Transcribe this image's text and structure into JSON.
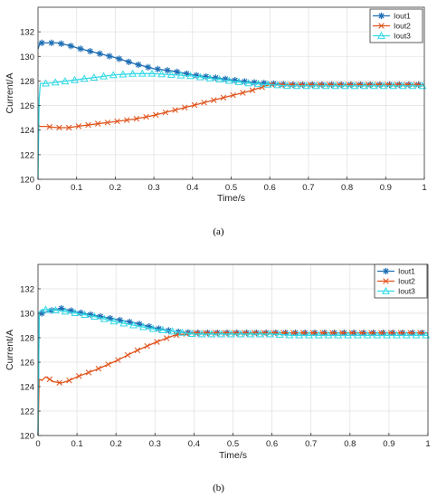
{
  "figure": {
    "caption_a": "(a)",
    "caption_b": "(b)"
  },
  "chart_data": [
    {
      "type": "line",
      "panel": "(a)",
      "xlabel": "Time/s",
      "ylabel": "Current/A",
      "xlim": [
        0,
        1
      ],
      "ylim": [
        120,
        134
      ],
      "xticks": [
        0,
        0.1,
        0.2,
        0.3,
        0.4,
        0.5,
        0.6,
        0.7,
        0.8,
        0.9,
        1
      ],
      "xtick_labels": [
        "0",
        "0.1",
        "0.2",
        "0.3",
        "0.4",
        "0.5",
        "0.6",
        "0.7",
        "0.8",
        "0.9",
        "1"
      ],
      "yticks": [
        120,
        122,
        124,
        126,
        128,
        130,
        132
      ],
      "ytick_labels": [
        "120",
        "122",
        "124",
        "126",
        "128",
        "130",
        "132"
      ],
      "grid": true,
      "legend_position": "top-right",
      "series": [
        {
          "name": "Iout1",
          "color": "#1f6fb5",
          "marker": "asterisk",
          "x": [
            0,
            0.005,
            0.02,
            0.05,
            0.08,
            0.1,
            0.15,
            0.2,
            0.25,
            0.3,
            0.35,
            0.4,
            0.45,
            0.5,
            0.55,
            0.6,
            0.65,
            0.7,
            0.75,
            0.8,
            0.85,
            0.9,
            0.95,
            1
          ],
          "y": [
            130.6,
            131.1,
            131.1,
            131.1,
            130.9,
            130.7,
            130.3,
            129.9,
            129.4,
            129.0,
            128.8,
            128.5,
            128.3,
            128.1,
            127.9,
            127.8,
            127.7,
            127.7,
            127.7,
            127.7,
            127.7,
            127.7,
            127.7,
            127.7
          ]
        },
        {
          "name": "Iout2",
          "color": "#e0531c",
          "marker": "x",
          "x": [
            0,
            0.005,
            0.02,
            0.05,
            0.08,
            0.1,
            0.15,
            0.2,
            0.25,
            0.3,
            0.35,
            0.4,
            0.45,
            0.5,
            0.55,
            0.58,
            0.6,
            0.65,
            0.7,
            0.75,
            0.8,
            0.85,
            0.9,
            0.95,
            1
          ],
          "y": [
            124.5,
            124.3,
            124.3,
            124.2,
            124.2,
            124.3,
            124.5,
            124.7,
            124.9,
            125.2,
            125.6,
            126.0,
            126.4,
            126.8,
            127.2,
            127.5,
            127.7,
            127.7,
            127.7,
            127.7,
            127.7,
            127.7,
            127.7,
            127.7,
            127.7
          ]
        },
        {
          "name": "Iout3",
          "color": "#33d9e6",
          "marker": "triangle",
          "x": [
            0,
            0.003,
            0.006,
            0.02,
            0.05,
            0.1,
            0.15,
            0.2,
            0.25,
            0.3,
            0.35,
            0.4,
            0.45,
            0.5,
            0.55,
            0.6,
            0.65,
            0.7,
            0.75,
            0.8,
            0.85,
            0.9,
            0.95,
            1
          ],
          "y": [
            120,
            126.5,
            127.8,
            127.8,
            127.9,
            128.1,
            128.3,
            128.5,
            128.6,
            128.6,
            128.5,
            128.4,
            128.2,
            128.0,
            127.8,
            127.7,
            127.6,
            127.6,
            127.6,
            127.6,
            127.6,
            127.6,
            127.6,
            127.6
          ]
        }
      ]
    },
    {
      "type": "line",
      "panel": "(b)",
      "xlabel": "Time/s",
      "ylabel": "Current/A",
      "xlim": [
        0,
        1
      ],
      "ylim": [
        120,
        134
      ],
      "xticks": [
        0,
        0.1,
        0.2,
        0.3,
        0.4,
        0.5,
        0.6,
        0.7,
        0.8,
        0.9,
        1
      ],
      "xtick_labels": [
        "0",
        "0.1",
        "0.2",
        "0.3",
        "0.4",
        "0.5",
        "0.6",
        "0.7",
        "0.8",
        "0.9",
        "1"
      ],
      "yticks": [
        120,
        122,
        124,
        126,
        128,
        130,
        132
      ],
      "ytick_labels": [
        "120",
        "122",
        "124",
        "126",
        "128",
        "130",
        "132"
      ],
      "grid": true,
      "legend_position": "top-right",
      "series": [
        {
          "name": "Iout1",
          "color": "#1f6fb5",
          "marker": "asterisk",
          "x": [
            0,
            0.003,
            0.01,
            0.03,
            0.06,
            0.1,
            0.15,
            0.2,
            0.25,
            0.3,
            0.35,
            0.4,
            0.45,
            0.5,
            0.55,
            0.6,
            0.65,
            0.7,
            0.75,
            0.8,
            0.85,
            0.9,
            0.95,
            1
          ],
          "y": [
            120,
            129.8,
            130.0,
            130.2,
            130.4,
            130.1,
            129.8,
            129.5,
            129.2,
            128.8,
            128.5,
            128.4,
            128.4,
            128.4,
            128.4,
            128.4,
            128.4,
            128.4,
            128.4,
            128.4,
            128.4,
            128.4,
            128.4,
            128.4
          ]
        },
        {
          "name": "Iout2",
          "color": "#e0531c",
          "marker": "x",
          "x": [
            0,
            0.003,
            0.01,
            0.02,
            0.04,
            0.06,
            0.08,
            0.1,
            0.15,
            0.2,
            0.25,
            0.3,
            0.35,
            0.4,
            0.45,
            0.5,
            0.55,
            0.6,
            0.65,
            0.7,
            0.75,
            0.8,
            0.85,
            0.9,
            0.95,
            1
          ],
          "y": [
            120,
            124.6,
            124.5,
            124.8,
            124.4,
            124.3,
            124.5,
            124.8,
            125.4,
            126.1,
            126.9,
            127.6,
            128.2,
            128.4,
            128.4,
            128.4,
            128.4,
            128.4,
            128.4,
            128.4,
            128.4,
            128.4,
            128.4,
            128.4,
            128.4,
            128.4
          ]
        },
        {
          "name": "Iout3",
          "color": "#33d9e6",
          "marker": "triangle",
          "x": [
            0,
            0.003,
            0.01,
            0.03,
            0.06,
            0.1,
            0.15,
            0.2,
            0.25,
            0.3,
            0.35,
            0.4,
            0.45,
            0.5,
            0.55,
            0.6,
            0.65,
            0.7,
            0.75,
            0.8,
            0.85,
            0.9,
            0.95,
            1
          ],
          "y": [
            120,
            130.1,
            130.3,
            130.3,
            130.2,
            130.0,
            129.7,
            129.3,
            129.0,
            128.7,
            128.5,
            128.3,
            128.3,
            128.3,
            128.3,
            128.3,
            128.2,
            128.2,
            128.2,
            128.2,
            128.2,
            128.2,
            128.2,
            128.2
          ]
        }
      ]
    }
  ]
}
